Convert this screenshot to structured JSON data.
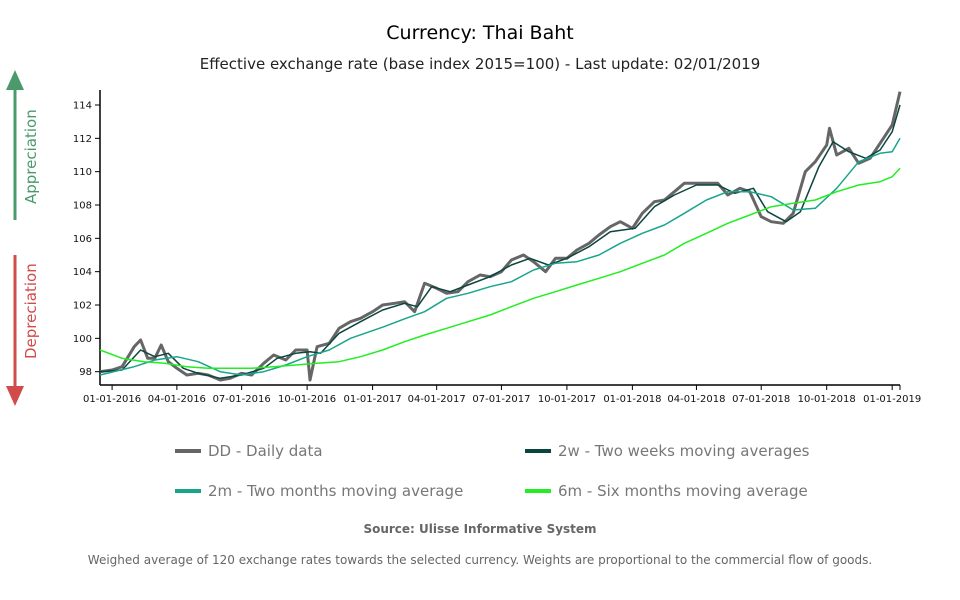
{
  "chart_data": {
    "type": "line",
    "title": "Currency: Thai Baht",
    "subtitle": "Effective exchange rate (base index 2015=100) - Last update: 02/01/2019",
    "xlim": [
      "2015-12-15",
      "2019-01-12"
    ],
    "ylim": [
      97.2,
      114.9
    ],
    "yticks": [
      98,
      100,
      102,
      104,
      106,
      108,
      110,
      112,
      114
    ],
    "xticks": [
      {
        "date": "2016-01-01",
        "label": "01-01-2016"
      },
      {
        "date": "2016-04-01",
        "label": "04-01-2016"
      },
      {
        "date": "2016-07-01",
        "label": "07-01-2016"
      },
      {
        "date": "2016-10-01",
        "label": "10-01-2016"
      },
      {
        "date": "2017-01-01",
        "label": "01-01-2017"
      },
      {
        "date": "2017-04-01",
        "label": "04-01-2017"
      },
      {
        "date": "2017-07-01",
        "label": "07-01-2017"
      },
      {
        "date": "2017-10-01",
        "label": "10-01-2017"
      },
      {
        "date": "2018-01-01",
        "label": "01-01-2018"
      },
      {
        "date": "2018-04-01",
        "label": "04-01-2018"
      },
      {
        "date": "2018-07-01",
        "label": "07-01-2018"
      },
      {
        "date": "2018-10-01",
        "label": "10-01-2018"
      },
      {
        "date": "2019-01-01",
        "label": "01-01-2019"
      }
    ],
    "grid": false,
    "legend_placement": "bottom",
    "series": [
      {
        "name": "DD - Daily data",
        "color": "#666666",
        "width": 3,
        "points": [
          [
            "2015-12-15",
            98.0
          ],
          [
            "2016-01-01",
            98.1
          ],
          [
            "2016-01-15",
            98.3
          ],
          [
            "2016-02-01",
            99.5
          ],
          [
            "2016-02-10",
            99.9
          ],
          [
            "2016-02-20",
            98.8
          ],
          [
            "2016-03-01",
            98.8
          ],
          [
            "2016-03-10",
            99.6
          ],
          [
            "2016-03-20",
            98.6
          ],
          [
            "2016-04-01",
            98.2
          ],
          [
            "2016-04-15",
            97.8
          ],
          [
            "2016-05-01",
            97.9
          ],
          [
            "2016-05-15",
            97.8
          ],
          [
            "2016-06-01",
            97.5
          ],
          [
            "2016-06-15",
            97.6
          ],
          [
            "2016-07-01",
            97.9
          ],
          [
            "2016-07-15",
            97.8
          ],
          [
            "2016-08-01",
            98.5
          ],
          [
            "2016-08-15",
            99.0
          ],
          [
            "2016-09-01",
            98.7
          ],
          [
            "2016-09-15",
            99.3
          ],
          [
            "2016-10-01",
            99.3
          ],
          [
            "2016-10-05",
            97.5
          ],
          [
            "2016-10-15",
            99.5
          ],
          [
            "2016-11-01",
            99.7
          ],
          [
            "2016-11-15",
            100.6
          ],
          [
            "2016-12-01",
            101.0
          ],
          [
            "2016-12-15",
            101.2
          ],
          [
            "2017-01-01",
            101.6
          ],
          [
            "2017-01-15",
            102.0
          ],
          [
            "2017-02-01",
            102.1
          ],
          [
            "2017-02-15",
            102.2
          ],
          [
            "2017-03-01",
            101.6
          ],
          [
            "2017-03-15",
            103.3
          ],
          [
            "2017-04-01",
            103.0
          ],
          [
            "2017-04-15",
            102.7
          ],
          [
            "2017-05-01",
            102.8
          ],
          [
            "2017-05-15",
            103.4
          ],
          [
            "2017-06-01",
            103.8
          ],
          [
            "2017-06-15",
            103.7
          ],
          [
            "2017-07-01",
            104.0
          ],
          [
            "2017-07-15",
            104.7
          ],
          [
            "2017-08-01",
            105.0
          ],
          [
            "2017-08-15",
            104.6
          ],
          [
            "2017-09-01",
            104.0
          ],
          [
            "2017-09-15",
            104.8
          ],
          [
            "2017-10-01",
            104.8
          ],
          [
            "2017-10-15",
            105.3
          ],
          [
            "2017-11-01",
            105.7
          ],
          [
            "2017-11-15",
            106.2
          ],
          [
            "2017-12-01",
            106.7
          ],
          [
            "2017-12-15",
            107.0
          ],
          [
            "2018-01-01",
            106.6
          ],
          [
            "2018-01-15",
            107.5
          ],
          [
            "2018-02-01",
            108.2
          ],
          [
            "2018-02-15",
            108.3
          ],
          [
            "2018-03-01",
            108.8
          ],
          [
            "2018-03-15",
            109.3
          ],
          [
            "2018-04-01",
            109.3
          ],
          [
            "2018-04-15",
            109.3
          ],
          [
            "2018-05-01",
            109.3
          ],
          [
            "2018-05-15",
            108.6
          ],
          [
            "2018-06-01",
            109.0
          ],
          [
            "2018-06-15",
            108.8
          ],
          [
            "2018-07-01",
            107.3
          ],
          [
            "2018-07-15",
            107.0
          ],
          [
            "2018-08-01",
            106.9
          ],
          [
            "2018-08-15",
            107.5
          ],
          [
            "2018-09-01",
            110.0
          ],
          [
            "2018-09-15",
            110.6
          ],
          [
            "2018-10-01",
            111.6
          ],
          [
            "2018-10-05",
            112.6
          ],
          [
            "2018-10-15",
            111.0
          ],
          [
            "2018-11-01",
            111.4
          ],
          [
            "2018-11-15",
            110.5
          ],
          [
            "2018-12-01",
            110.8
          ],
          [
            "2018-12-15",
            111.7
          ],
          [
            "2019-01-01",
            112.8
          ],
          [
            "2019-01-12",
            114.8
          ]
        ]
      },
      {
        "name": "2w - Two weeks moving averages",
        "color": "#0b4540",
        "width": 1.5,
        "points": [
          [
            "2015-12-15",
            98.0
          ],
          [
            "2016-01-15",
            98.1
          ],
          [
            "2016-02-10",
            99.3
          ],
          [
            "2016-03-01",
            98.9
          ],
          [
            "2016-03-20",
            99.1
          ],
          [
            "2016-04-10",
            98.2
          ],
          [
            "2016-05-01",
            97.9
          ],
          [
            "2016-06-01",
            97.6
          ],
          [
            "2016-07-01",
            97.8
          ],
          [
            "2016-08-01",
            98.2
          ],
          [
            "2016-08-20",
            98.8
          ],
          [
            "2016-09-15",
            99.1
          ],
          [
            "2016-10-05",
            99.2
          ],
          [
            "2016-10-20",
            99.1
          ],
          [
            "2016-11-15",
            100.3
          ],
          [
            "2016-12-15",
            101.0
          ],
          [
            "2017-01-15",
            101.7
          ],
          [
            "2017-02-15",
            102.1
          ],
          [
            "2017-03-05",
            101.9
          ],
          [
            "2017-03-25",
            103.1
          ],
          [
            "2017-04-20",
            102.8
          ],
          [
            "2017-05-15",
            103.2
          ],
          [
            "2017-06-15",
            103.7
          ],
          [
            "2017-07-15",
            104.4
          ],
          [
            "2017-08-10",
            104.8
          ],
          [
            "2017-09-05",
            104.4
          ],
          [
            "2017-10-01",
            104.8
          ],
          [
            "2017-11-01",
            105.5
          ],
          [
            "2017-12-01",
            106.4
          ],
          [
            "2018-01-05",
            106.6
          ],
          [
            "2018-02-01",
            107.9
          ],
          [
            "2018-03-01",
            108.6
          ],
          [
            "2018-04-01",
            109.2
          ],
          [
            "2018-05-01",
            109.2
          ],
          [
            "2018-05-25",
            108.7
          ],
          [
            "2018-06-20",
            109.0
          ],
          [
            "2018-07-10",
            107.6
          ],
          [
            "2018-08-05",
            107.0
          ],
          [
            "2018-08-25",
            107.6
          ],
          [
            "2018-09-20",
            110.3
          ],
          [
            "2018-10-10",
            111.8
          ],
          [
            "2018-11-01",
            111.2
          ],
          [
            "2018-11-25",
            110.8
          ],
          [
            "2018-12-15",
            111.3
          ],
          [
            "2019-01-01",
            112.4
          ],
          [
            "2019-01-12",
            114.0
          ]
        ]
      },
      {
        "name": "2m - Two months moving average",
        "color": "#17a58c",
        "width": 1.5,
        "points": [
          [
            "2015-12-15",
            97.8
          ],
          [
            "2016-02-01",
            98.3
          ],
          [
            "2016-03-01",
            98.7
          ],
          [
            "2016-04-01",
            98.9
          ],
          [
            "2016-05-01",
            98.6
          ],
          [
            "2016-06-01",
            98.0
          ],
          [
            "2016-07-01",
            97.8
          ],
          [
            "2016-08-01",
            98.0
          ],
          [
            "2016-09-01",
            98.4
          ],
          [
            "2016-10-01",
            98.9
          ],
          [
            "2016-11-01",
            99.3
          ],
          [
            "2016-12-01",
            100.0
          ],
          [
            "2017-01-17",
            100.7
          ],
          [
            "2017-02-17",
            101.2
          ],
          [
            "2017-03-15",
            101.6
          ],
          [
            "2017-04-15",
            102.4
          ],
          [
            "2017-05-15",
            102.7
          ],
          [
            "2017-06-15",
            103.1
          ],
          [
            "2017-07-15",
            103.4
          ],
          [
            "2017-08-15",
            104.1
          ],
          [
            "2017-09-15",
            104.5
          ],
          [
            "2017-10-15",
            104.6
          ],
          [
            "2017-11-15",
            105.0
          ],
          [
            "2017-12-15",
            105.7
          ],
          [
            "2018-01-15",
            106.3
          ],
          [
            "2018-02-15",
            106.8
          ],
          [
            "2018-03-15",
            107.5
          ],
          [
            "2018-04-15",
            108.3
          ],
          [
            "2018-05-15",
            108.8
          ],
          [
            "2018-06-15",
            108.8
          ],
          [
            "2018-07-15",
            108.5
          ],
          [
            "2018-08-15",
            107.7
          ],
          [
            "2018-09-15",
            107.8
          ],
          [
            "2018-10-15",
            109.0
          ],
          [
            "2018-11-15",
            110.6
          ],
          [
            "2018-12-15",
            111.1
          ],
          [
            "2019-01-01",
            111.2
          ],
          [
            "2019-01-12",
            112.0
          ]
        ]
      },
      {
        "name": "6m - Six months moving average",
        "color": "#22ee22",
        "width": 1.5,
        "points": [
          [
            "2015-12-15",
            99.3
          ],
          [
            "2016-01-15",
            98.8
          ],
          [
            "2016-02-15",
            98.6
          ],
          [
            "2016-03-15",
            98.5
          ],
          [
            "2016-04-15",
            98.3
          ],
          [
            "2016-05-15",
            98.2
          ],
          [
            "2016-06-15",
            98.2
          ],
          [
            "2016-07-15",
            98.2
          ],
          [
            "2016-08-15",
            98.3
          ],
          [
            "2016-09-15",
            98.4
          ],
          [
            "2016-10-15",
            98.5
          ],
          [
            "2016-11-15",
            98.6
          ],
          [
            "2016-12-15",
            98.9
          ],
          [
            "2017-01-15",
            99.3
          ],
          [
            "2017-02-15",
            99.8
          ],
          [
            "2017-03-15",
            100.2
          ],
          [
            "2017-04-15",
            100.6
          ],
          [
            "2017-05-15",
            101.0
          ],
          [
            "2017-06-15",
            101.4
          ],
          [
            "2017-07-15",
            101.9
          ],
          [
            "2017-08-15",
            102.4
          ],
          [
            "2017-09-15",
            102.8
          ],
          [
            "2017-10-15",
            103.2
          ],
          [
            "2017-11-15",
            103.6
          ],
          [
            "2017-12-15",
            104.0
          ],
          [
            "2018-01-15",
            104.5
          ],
          [
            "2018-02-15",
            105.0
          ],
          [
            "2018-03-15",
            105.7
          ],
          [
            "2018-04-15",
            106.3
          ],
          [
            "2018-05-15",
            106.9
          ],
          [
            "2018-06-15",
            107.4
          ],
          [
            "2018-07-15",
            107.9
          ],
          [
            "2018-08-15",
            108.1
          ],
          [
            "2018-09-15",
            108.3
          ],
          [
            "2018-10-15",
            108.8
          ],
          [
            "2018-11-15",
            109.2
          ],
          [
            "2018-12-15",
            109.4
          ],
          [
            "2019-01-01",
            109.7
          ],
          [
            "2019-01-12",
            110.2
          ]
        ]
      }
    ]
  },
  "side_labels": {
    "appreciation": "Appreciation",
    "appreciation_color": "#4a9a6c",
    "depreciation": "Depreciation",
    "depreciation_color": "#d24b4b"
  },
  "legend": [
    "DD - Daily data",
    "2w - Two weeks moving averages",
    "2m - Two months moving average",
    "6m - Six months moving average"
  ],
  "source": "Source: Ulisse Informative System",
  "note": "Weighed average of 120 exchange rates towards the selected currency. Weights are proportional to the commercial flow of goods."
}
